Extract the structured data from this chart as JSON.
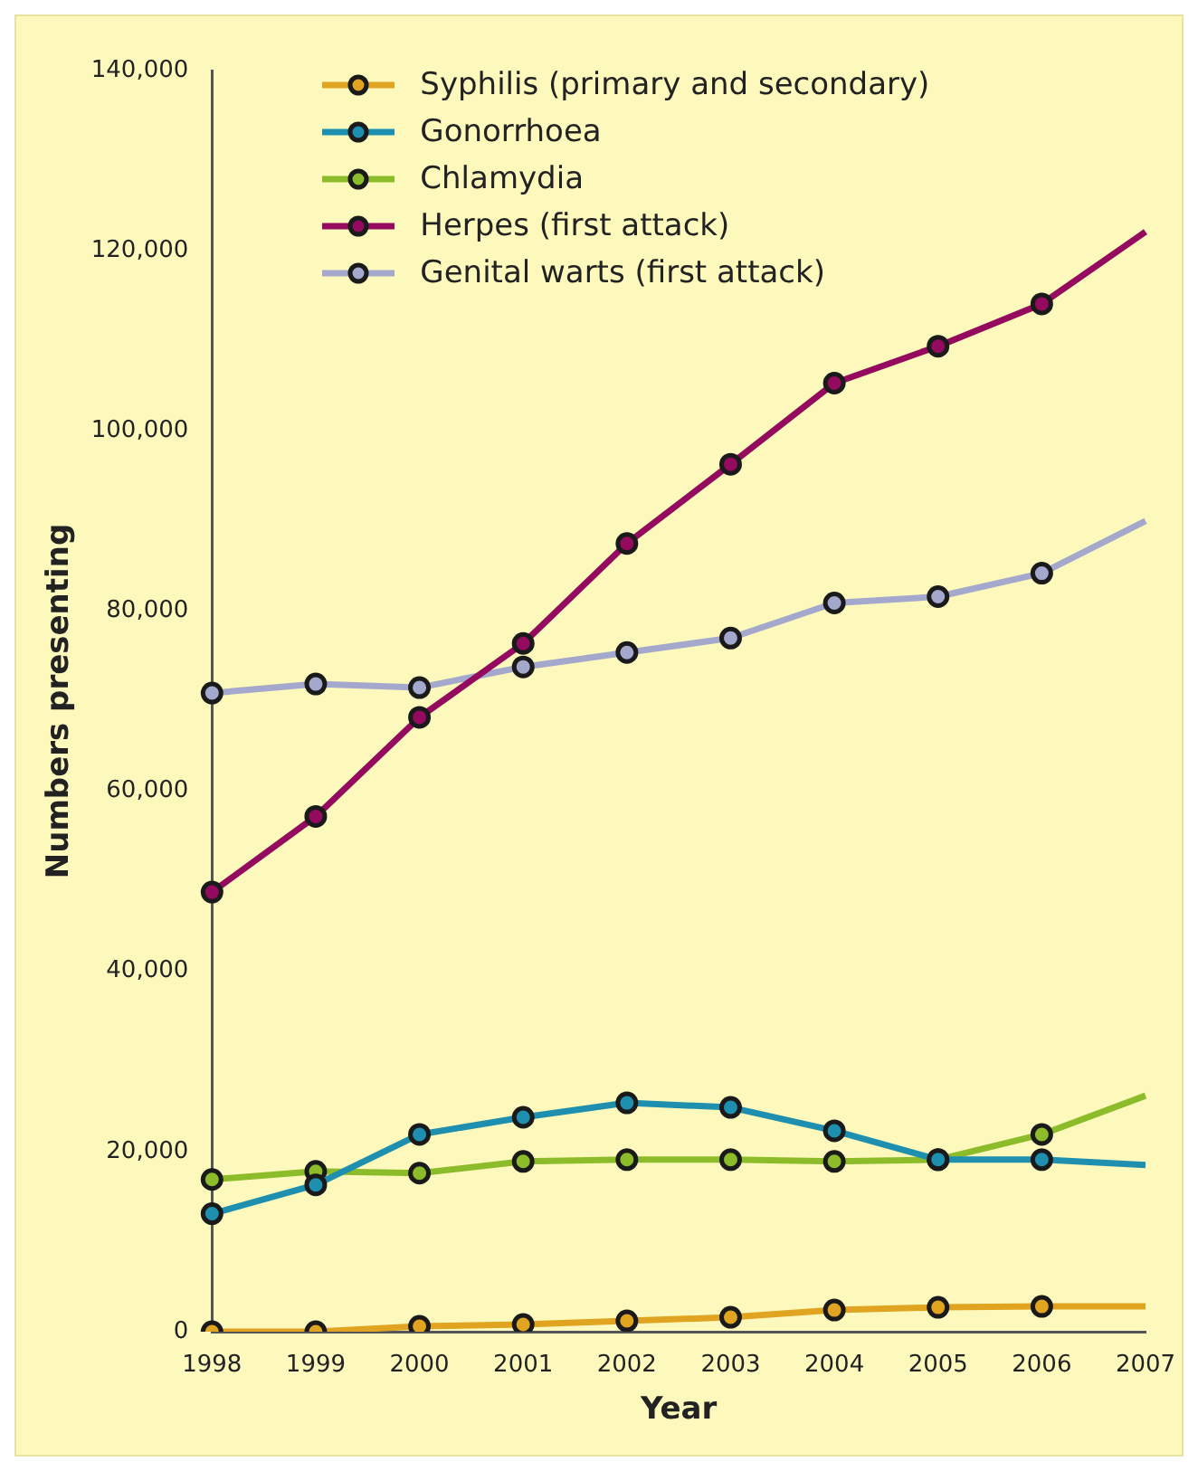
{
  "chart_data": {
    "type": "line",
    "xlabel": "Year",
    "ylabel": "Numbers presenting",
    "categories": [
      "1998",
      "1999",
      "2000",
      "2001",
      "2002",
      "2003",
      "2004",
      "2005",
      "2006",
      "2007"
    ],
    "ylim": [
      0,
      140000
    ],
    "yticks": [
      {
        "value": 0,
        "label": "0"
      },
      {
        "value": 20000,
        "label": "20,000"
      },
      {
        "value": 40000,
        "label": "40,000"
      },
      {
        "value": 60000,
        "label": "60,000"
      },
      {
        "value": 80000,
        "label": "80,000"
      },
      {
        "value": 100000,
        "label": "100,000"
      },
      {
        "value": 120000,
        "label": "120,000"
      },
      {
        "value": 140000,
        "label": "140,000"
      }
    ],
    "legend": "top left",
    "marker": "circle",
    "grid": false,
    "series": [
      {
        "name": "Syphilis (primary and secondary)",
        "color": "#e0a420",
        "values": [
          0,
          0,
          600,
          800,
          1200,
          1600,
          2400,
          2700,
          2800,
          2800
        ]
      },
      {
        "name": "Gonorrhoea",
        "color": "#1e8fae",
        "values": [
          13100,
          16300,
          21900,
          23800,
          25400,
          24900,
          22300,
          19100,
          19100,
          18500
        ]
      },
      {
        "name": "Chlamydia",
        "color": "#8cbc2a",
        "values": [
          16900,
          17800,
          17600,
          18900,
          19100,
          19100,
          18900,
          19100,
          21900,
          26200
        ]
      },
      {
        "name": "Herpes (first attack)",
        "color": "#930a5e",
        "values": [
          48800,
          57200,
          68200,
          76400,
          87500,
          96300,
          105300,
          109400,
          114100,
          122100
        ]
      },
      {
        "name": "Genital warts (first attack)",
        "color": "#a4a8cc",
        "values": [
          70900,
          71900,
          71500,
          73800,
          75400,
          77000,
          80900,
          81600,
          84200,
          90000
        ]
      }
    ]
  }
}
